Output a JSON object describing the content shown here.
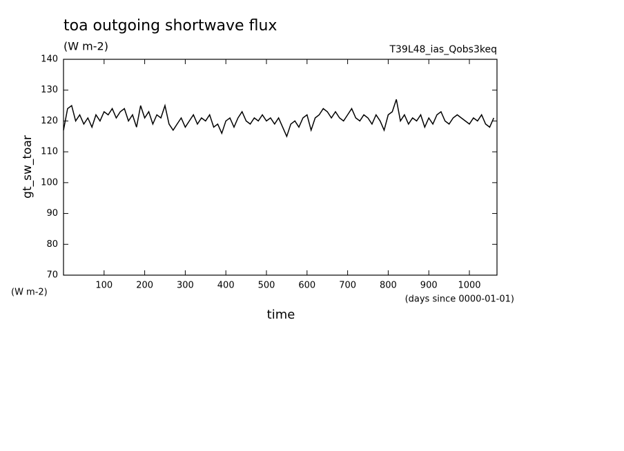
{
  "chart_data": {
    "type": "line",
    "title": "toa outgoing shortwave flux",
    "subtitle": "(W m-2)",
    "run_label": "T39L48_ias_Qobs3keq",
    "y_label": "gt_sw_toar",
    "y_units": "(W m-2)",
    "x_label": "time",
    "x_units": "(days since 0000-01-01)",
    "color": "#000000",
    "x": [
      0,
      10,
      20,
      30,
      40,
      50,
      60,
      70,
      80,
      90,
      100,
      110,
      120,
      130,
      140,
      150,
      160,
      170,
      180,
      190,
      200,
      210,
      220,
      230,
      240,
      250,
      260,
      270,
      280,
      290,
      300,
      310,
      320,
      330,
      340,
      350,
      360,
      370,
      380,
      390,
      400,
      410,
      420,
      430,
      440,
      450,
      460,
      470,
      480,
      490,
      500,
      510,
      520,
      530,
      540,
      550,
      560,
      570,
      580,
      590,
      600,
      610,
      620,
      630,
      640,
      650,
      660,
      670,
      680,
      690,
      700,
      710,
      720,
      730,
      740,
      750,
      760,
      770,
      780,
      790,
      800,
      810,
      820,
      830,
      840,
      850,
      860,
      870,
      880,
      890,
      900,
      910,
      920,
      930,
      940,
      950,
      960,
      970,
      980,
      990,
      1000,
      1010,
      1020,
      1030,
      1040,
      1050,
      1060
    ],
    "values": [
      117,
      124,
      125,
      120,
      122,
      119,
      121,
      118,
      122,
      120,
      123,
      122,
      124,
      121,
      123,
      124,
      120,
      122,
      118,
      125,
      121,
      123,
      119,
      122,
      121,
      125,
      119,
      117,
      119,
      121,
      118,
      120,
      122,
      119,
      121,
      120,
      122,
      118,
      119,
      116,
      120,
      121,
      118,
      121,
      123,
      120,
      119,
      121,
      120,
      122,
      120,
      121,
      119,
      121,
      118,
      115,
      119,
      120,
      118,
      121,
      122,
      117,
      121,
      122,
      124,
      123,
      121,
      123,
      121,
      120,
      122,
      124,
      121,
      120,
      122,
      121,
      119,
      122,
      120,
      117,
      122,
      123,
      127,
      120,
      122,
      119,
      121,
      120,
      122,
      118,
      121,
      119,
      122,
      123,
      120,
      119,
      121,
      122,
      121,
      120,
      119,
      121,
      120,
      122,
      119,
      118,
      121
    ],
    "xlim": [
      0,
      1068
    ],
    "ylim": [
      70,
      140
    ],
    "xticks": [
      100,
      200,
      300,
      400,
      500,
      600,
      700,
      800,
      900,
      1000
    ],
    "yticks": [
      70,
      80,
      90,
      100,
      110,
      120,
      130,
      140
    ]
  }
}
